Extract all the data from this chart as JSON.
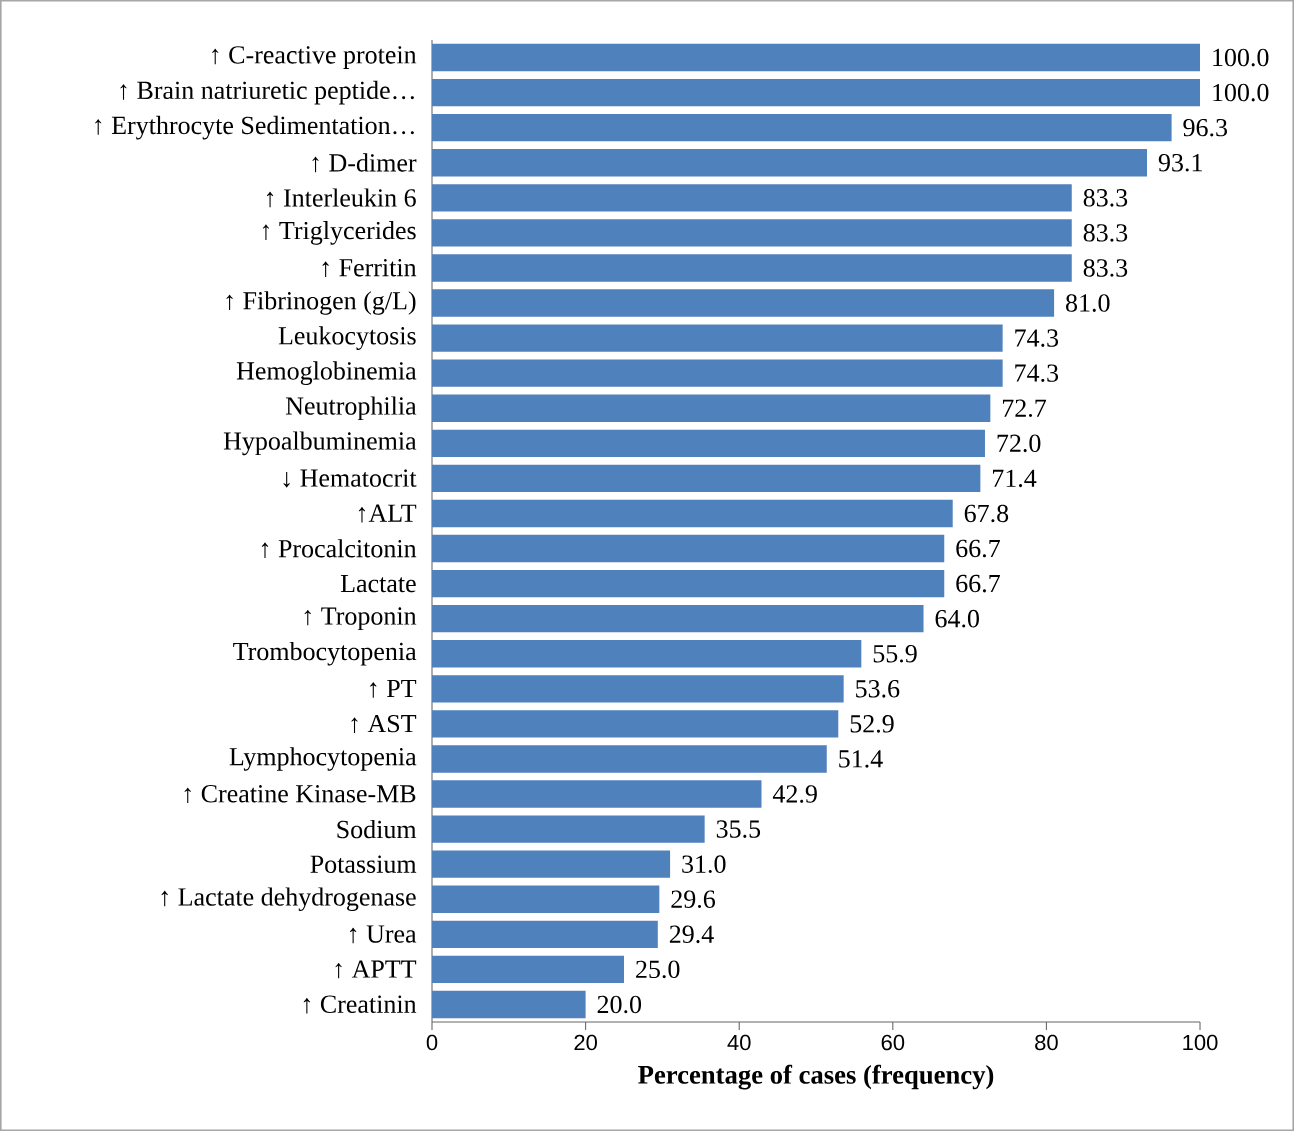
{
  "chart_data": {
    "type": "bar",
    "orientation": "horizontal",
    "xlabel": "Percentage of cases (frequency)",
    "categories": [
      "↑ C-reactive protein",
      "↑ Brain natriuretic peptide…",
      "↑ Erythrocyte Sedimentation…",
      "↑ D-dimer",
      "↑ Interleukin 6",
      "↑ Triglycerides",
      "↑ Ferritin",
      "↑ Fibrinogen (g/L)",
      "Leukocytosis",
      "Hemoglobinemia",
      "Neutrophilia",
      "Hypoalbuminemia",
      "↓ Hematocrit",
      "↑ALT",
      "↑ Procalcitonin",
      "Lactate",
      "↑ Troponin",
      "Trombocytopenia",
      "↑ PT",
      "↑ AST",
      "Lymphocytopenia",
      "↑ Creatine Kinase-MB",
      "Sodium",
      "Potassium",
      "↑ Lactate dehydrogenase",
      "↑ Urea",
      "↑ APTT",
      "↑ Creatinin"
    ],
    "values": [
      100.0,
      100.0,
      96.3,
      93.1,
      83.3,
      83.3,
      83.3,
      81.0,
      74.3,
      74.3,
      72.7,
      72.0,
      71.4,
      67.8,
      66.7,
      66.7,
      64.0,
      55.9,
      53.6,
      52.9,
      51.4,
      42.9,
      35.5,
      31.0,
      29.6,
      29.4,
      25.0,
      20.0
    ],
    "value_labels": [
      "100.0",
      "100.0",
      "96.3",
      "93.1",
      "83.3",
      "83.3",
      "83.3",
      "81.0",
      "74.3",
      "74.3",
      "72.7",
      "72.0",
      "71.4",
      "67.8",
      "66.7",
      "66.7",
      "64.0",
      "55.9",
      "53.6",
      "52.9",
      "51.4",
      "42.9",
      "35.5",
      "31.0",
      "29.6",
      "29.4",
      "25.0",
      "20.0"
    ],
    "color": "#4f81bd",
    "xlim": [
      0,
      100
    ],
    "xticks": [
      0,
      20,
      40,
      60,
      80,
      100
    ]
  }
}
